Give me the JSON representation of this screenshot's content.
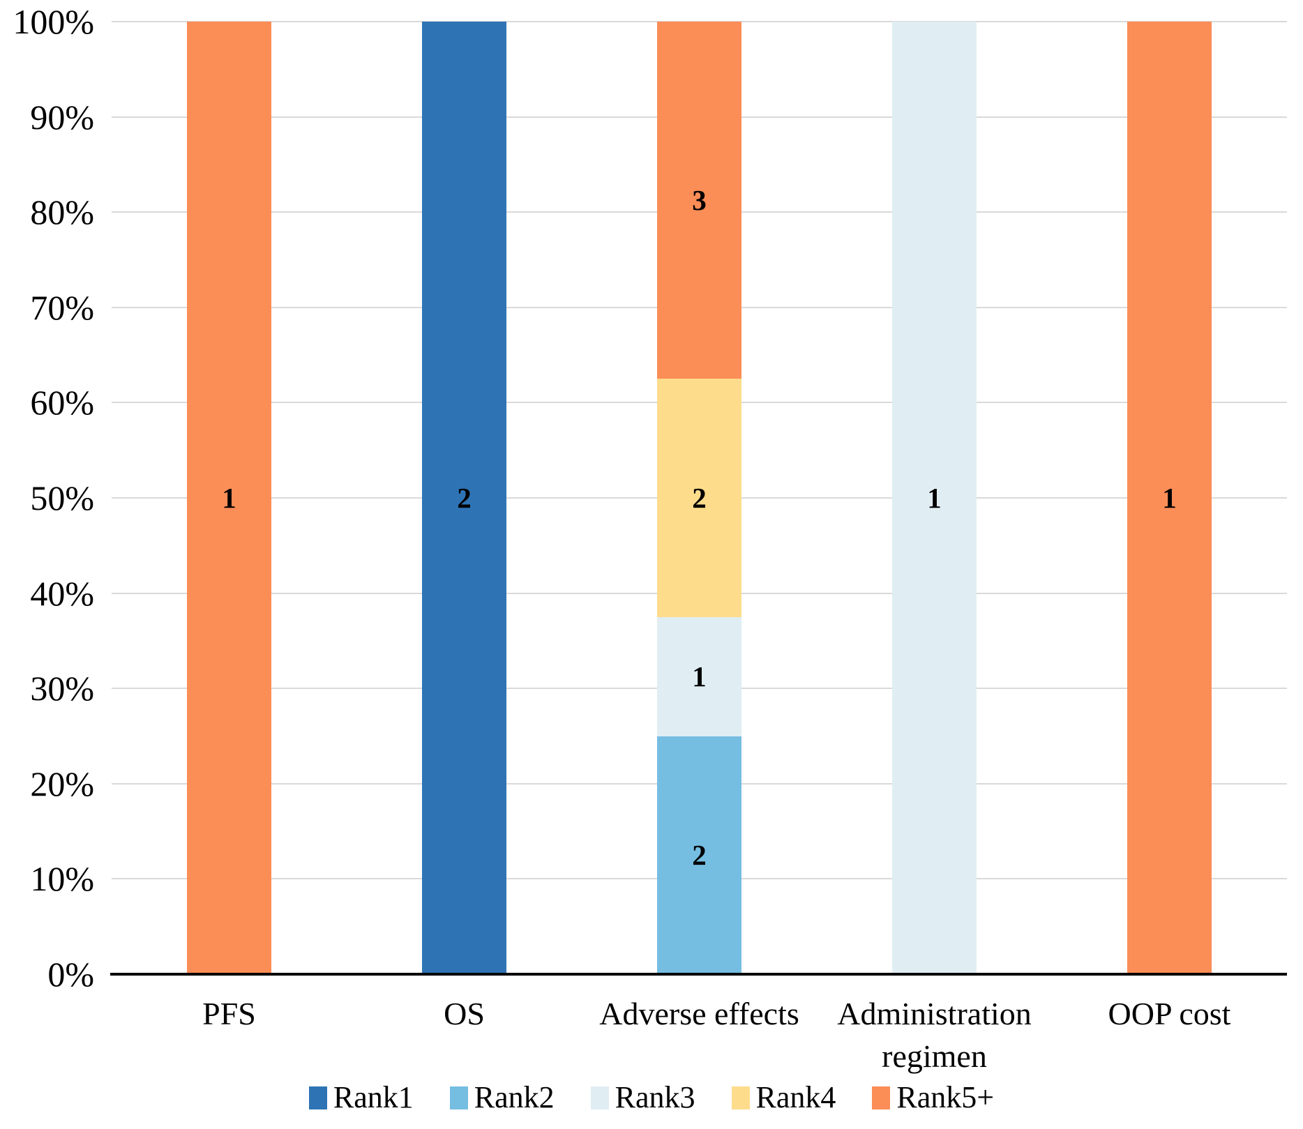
{
  "chart_data": {
    "type": "bar",
    "subtype": "stacked-100-percent",
    "title": "",
    "xlabel": "",
    "ylabel": "",
    "grid": true,
    "legend_position": "bottom",
    "gridline_color": "#d9d9d9",
    "axis_line_color": "#000000",
    "background_color": "#ffffff",
    "categories": [
      "PFS",
      "OS",
      "Adverse effects",
      "Administration regimen",
      "OOP cost"
    ],
    "series": [
      {
        "name": "Rank1",
        "color": "#2e74b5",
        "values": [
          0,
          2,
          0,
          0,
          0
        ]
      },
      {
        "name": "Rank2",
        "color": "#76bde2",
        "values": [
          0,
          0,
          2,
          0,
          0
        ]
      },
      {
        "name": "Rank3",
        "color": "#e0eef3",
        "values": [
          0,
          0,
          1,
          1,
          0
        ]
      },
      {
        "name": "Rank4",
        "color": "#fddc8b",
        "values": [
          0,
          0,
          2,
          0,
          0
        ]
      },
      {
        "name": "Rank5+",
        "color": "#fb8d57",
        "values": [
          1,
          0,
          3,
          0,
          1
        ]
      }
    ],
    "segment_percentages_by_category": {
      "PFS": {
        "Rank5+": 100
      },
      "OS": {
        "Rank1": 100
      },
      "Adverse effects": {
        "Rank2": 25,
        "Rank3": 12.5,
        "Rank4": 25,
        "Rank5+": 37.5
      },
      "Administration regimen": {
        "Rank3": 100
      },
      "OOP cost": {
        "Rank5+": 100
      }
    },
    "y_axis": {
      "min": 0,
      "max": 100,
      "tick_step": 10,
      "tick_labels": [
        "0%",
        "10%",
        "20%",
        "30%",
        "40%",
        "50%",
        "60%",
        "70%",
        "80%",
        "90%",
        "100%"
      ]
    }
  }
}
